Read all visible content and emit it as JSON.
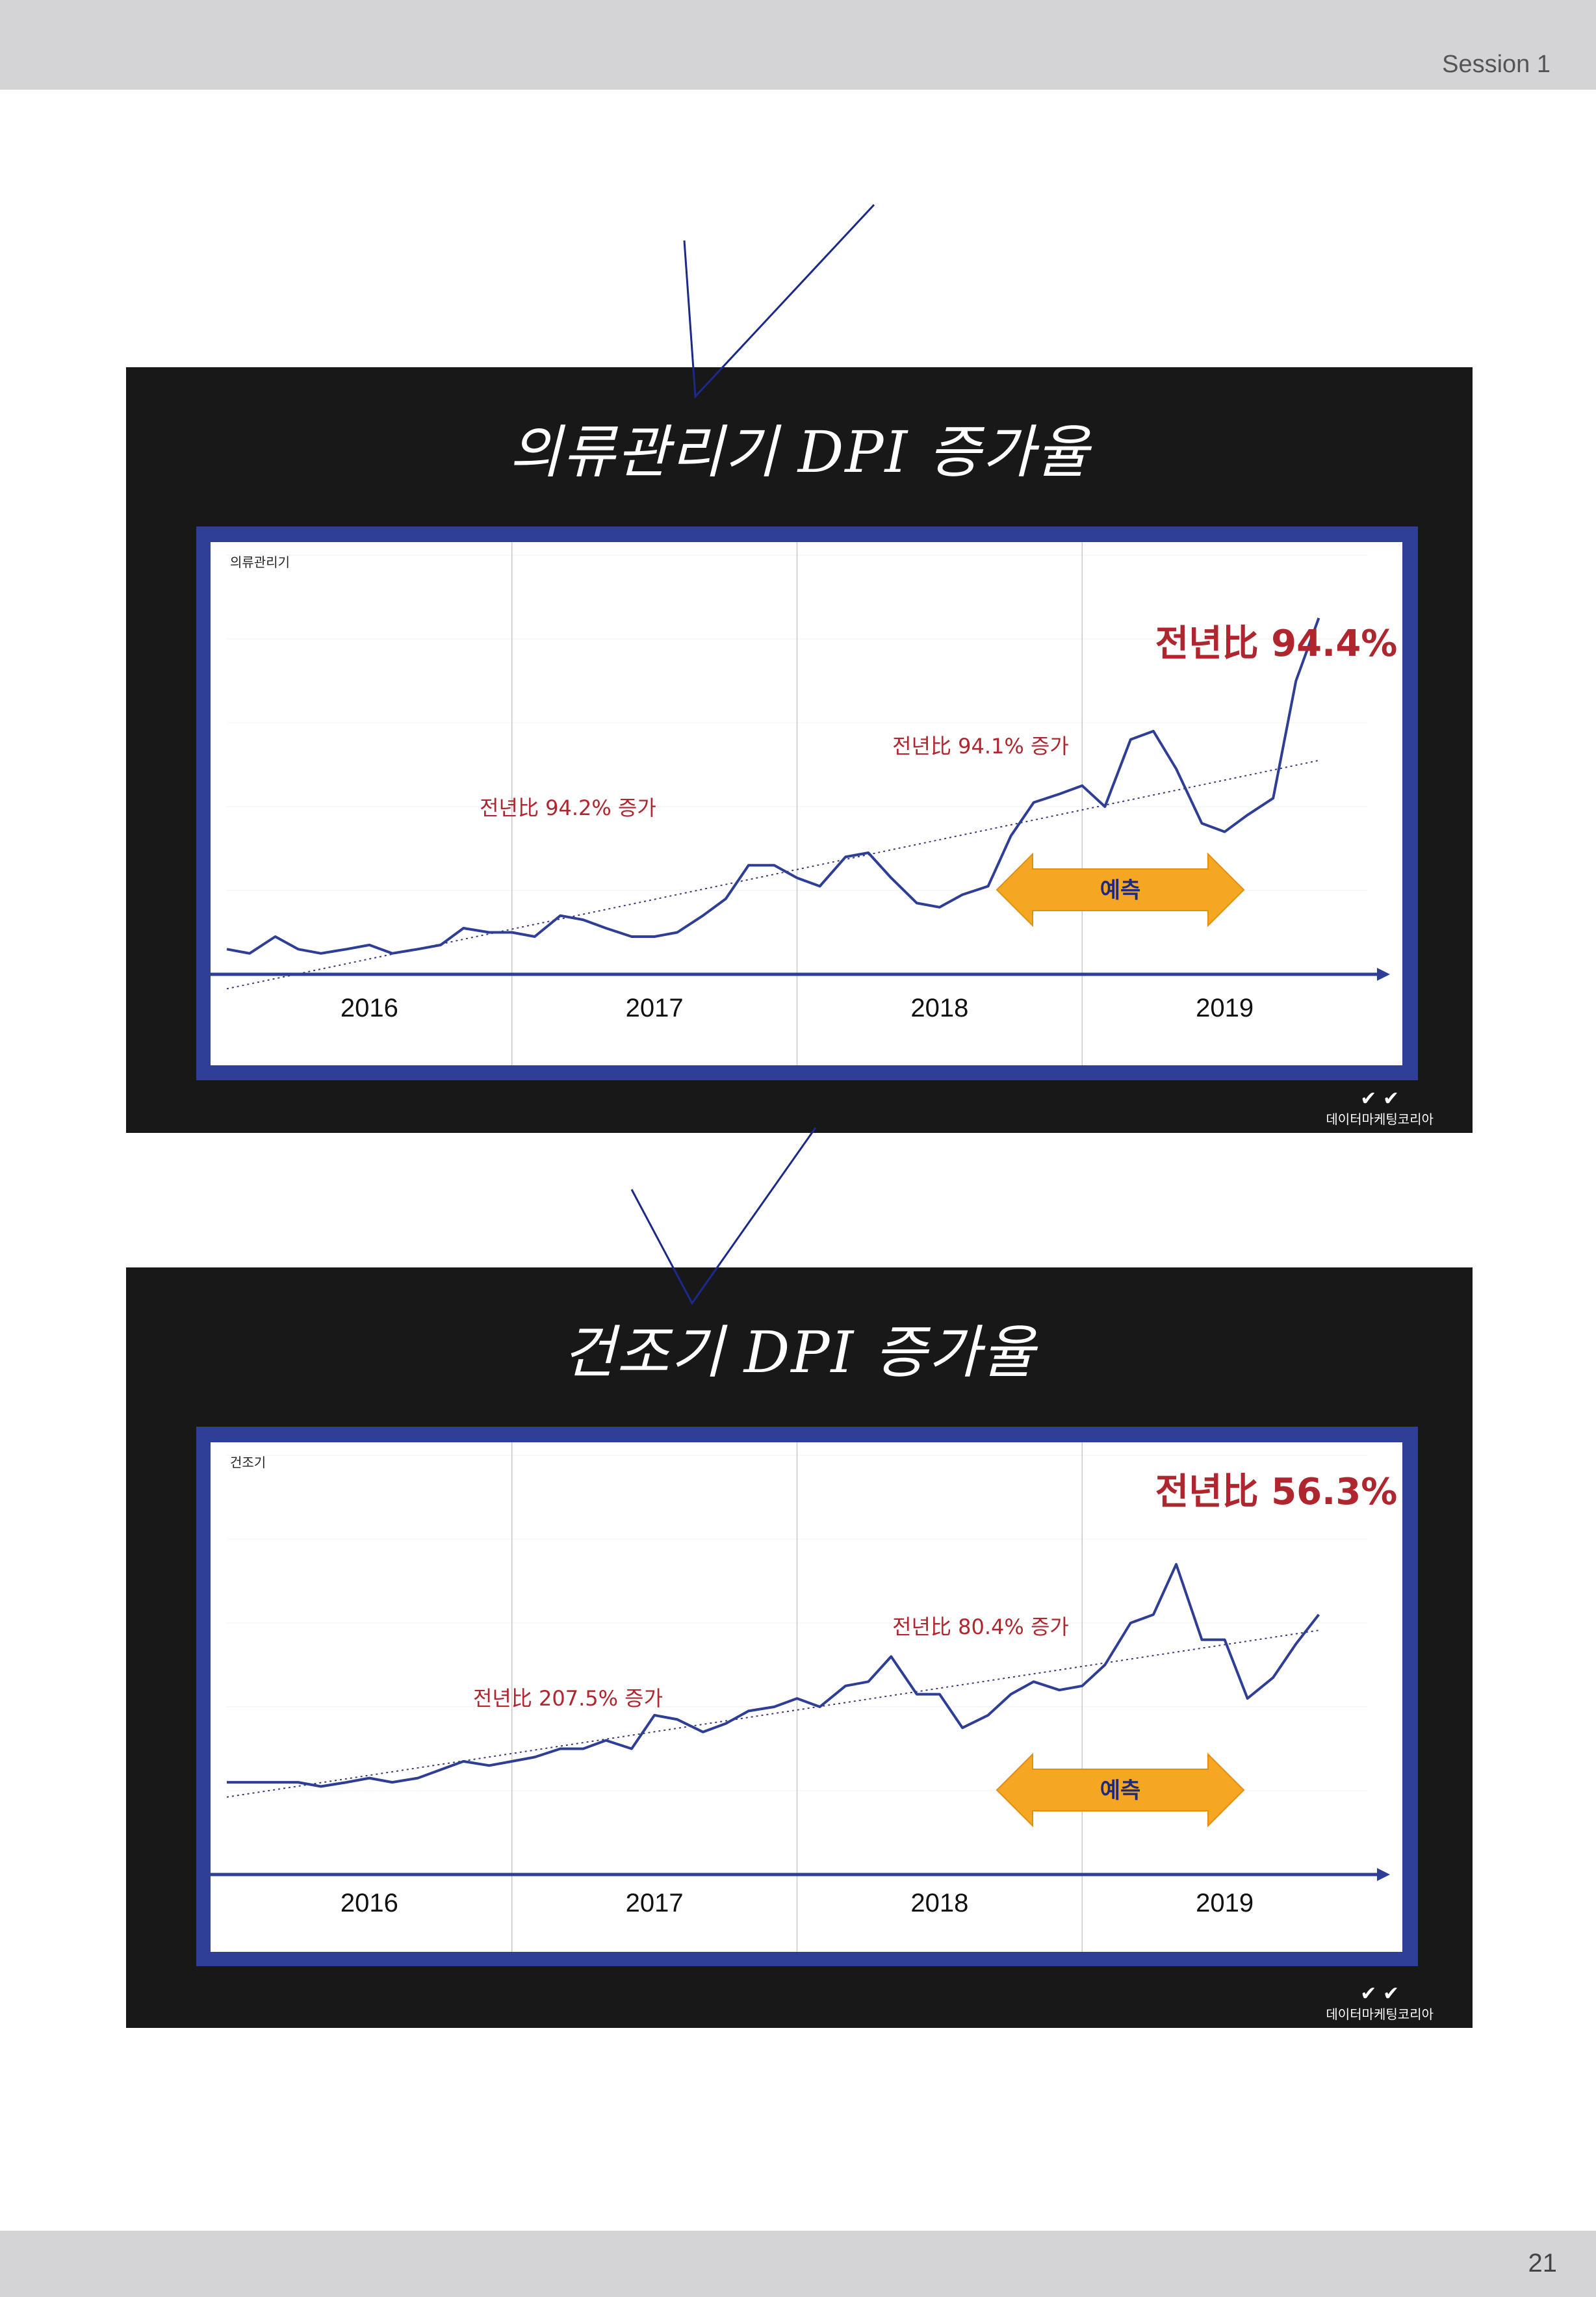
{
  "header": {
    "session": "Session 1"
  },
  "footer": {
    "page_number": "21"
  },
  "logo_text": "데이터마케팅코리아",
  "colors": {
    "line": "#2e3e96",
    "annotation": "#b0262f",
    "arrow": "#f5a623",
    "frame": "#2f3e97",
    "panel": "#181818"
  },
  "chart_data": [
    {
      "type": "line",
      "title": "의류관리기 DPI 증가율",
      "series_label": "의류관리기",
      "x_axis_labels": [
        "2016",
        "2017",
        "2018",
        "2019"
      ],
      "trendline": true,
      "grid": "yearly vertical separators",
      "forecast_label": "예측",
      "annotations": [
        "전년比 94.2% 증가",
        "전년比 94.1% 증가",
        "전년比 94.4%"
      ],
      "ylim": [
        0,
        100
      ],
      "series": [
        {
          "x": [
            2016.0,
            2016.08,
            2016.17,
            2016.25,
            2016.33,
            2016.42,
            2016.5,
            2016.58,
            2016.67,
            2016.75,
            2016.83,
            2016.92,
            2017.0,
            2017.08,
            2017.17,
            2017.25,
            2017.33,
            2017.42,
            2017.5,
            2017.58,
            2017.67,
            2017.75,
            2017.83,
            2017.92,
            2018.0,
            2018.08,
            2018.17,
            2018.25,
            2018.33,
            2018.42,
            2018.5,
            2018.58,
            2018.67,
            2018.75,
            2018.83,
            2018.92,
            2019.0,
            2019.08,
            2019.17,
            2019.25,
            2019.33,
            2019.42,
            2019.5,
            2019.58,
            2019.67,
            2019.75,
            2019.83
          ],
          "values": [
            6,
            5,
            9,
            6,
            5,
            6,
            7,
            5,
            6,
            7,
            11,
            10,
            10,
            9,
            14,
            13,
            11,
            9,
            9,
            10,
            14,
            18,
            26,
            26,
            23,
            21,
            28,
            29,
            23,
            17,
            16,
            19,
            21,
            33,
            41,
            43,
            45,
            40,
            56,
            58,
            49,
            36,
            34,
            38,
            42,
            70,
            85
          ]
        }
      ]
    },
    {
      "type": "line",
      "title": "건조기 DPI 증가율",
      "series_label": "건조기",
      "x_axis_labels": [
        "2016",
        "2017",
        "2018",
        "2019"
      ],
      "trendline": true,
      "grid": "yearly vertical separators",
      "forecast_label": "예측",
      "annotations": [
        "전년比 207.5% 증가",
        "전년比 80.4% 증가",
        "전년比 56.3%"
      ],
      "ylim": [
        0,
        100
      ],
      "series": [
        {
          "x": [
            2016.0,
            2016.08,
            2016.17,
            2016.25,
            2016.33,
            2016.42,
            2016.5,
            2016.58,
            2016.67,
            2016.75,
            2016.83,
            2016.92,
            2017.0,
            2017.08,
            2017.17,
            2017.25,
            2017.33,
            2017.42,
            2017.5,
            2017.58,
            2017.67,
            2017.75,
            2017.83,
            2017.92,
            2018.0,
            2018.08,
            2018.17,
            2018.25,
            2018.33,
            2018.42,
            2018.5,
            2018.58,
            2018.67,
            2018.75,
            2018.83,
            2018.92,
            2019.0,
            2019.08,
            2019.17,
            2019.25,
            2019.33,
            2019.42,
            2019.5,
            2019.58,
            2019.67,
            2019.75,
            2019.83
          ],
          "values": [
            22,
            22,
            22,
            22,
            21,
            22,
            23,
            22,
            23,
            25,
            27,
            26,
            27,
            28,
            30,
            30,
            32,
            30,
            38,
            37,
            34,
            36,
            39,
            40,
            42,
            40,
            45,
            46,
            52,
            43,
            43,
            35,
            38,
            43,
            46,
            44,
            45,
            50,
            60,
            62,
            74,
            56,
            56,
            42,
            47,
            55,
            62
          ]
        }
      ]
    }
  ]
}
